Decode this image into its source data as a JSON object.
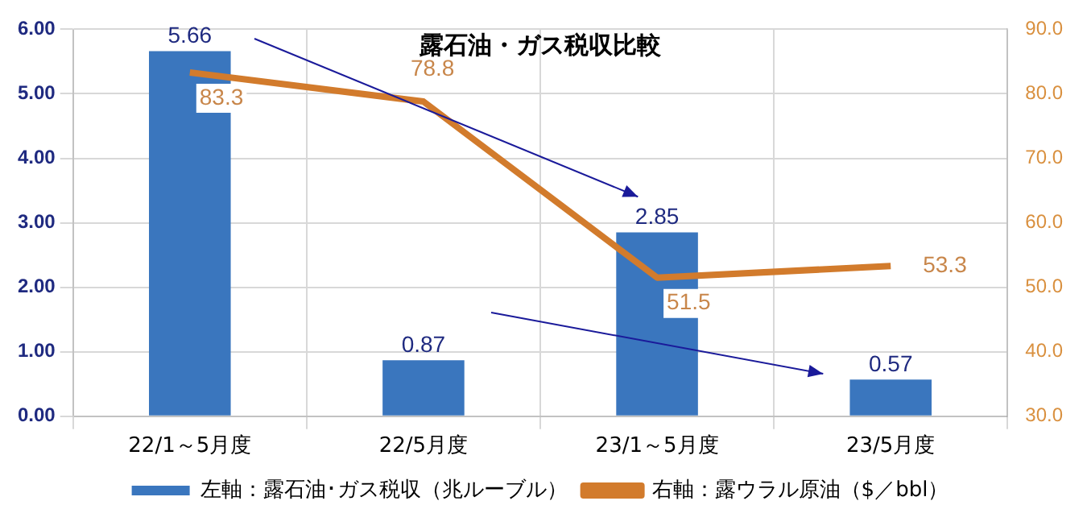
{
  "chart_data": {
    "type": "bar",
    "title": "露石油・ガス税収比較",
    "categories": [
      "22/1～5月度",
      "22/5月度",
      "23/1～5月度",
      "23/5月度"
    ],
    "series": [
      {
        "name": "左軸：露石油･ガス税収（兆ルーブル）",
        "color": "#3a76be",
        "values": [
          5.66,
          0.87,
          2.85,
          0.57
        ]
      },
      {
        "name": "右軸：露ウラル原油（$／bbl）",
        "type": "line",
        "axis": "y2",
        "color": "#d27b2c",
        "values": [
          83.3,
          78.8,
          51.5,
          53.3
        ]
      }
    ],
    "ylim": [
      0,
      6
    ],
    "yticks": [
      {
        "value": 0,
        "label": "0.00"
      },
      {
        "value": 1,
        "label": "1.00"
      },
      {
        "value": 2,
        "label": "2.00"
      },
      {
        "value": 3,
        "label": "3.00"
      },
      {
        "value": 4,
        "label": "4.00"
      },
      {
        "value": 5,
        "label": "5.00"
      },
      {
        "value": 6,
        "label": "6.00"
      }
    ],
    "y2lim": [
      30,
      90
    ],
    "y2ticks": [
      {
        "value": 30,
        "label": "30.0"
      },
      {
        "value": 40,
        "label": "40.0"
      },
      {
        "value": 50,
        "label": "50.0"
      },
      {
        "value": 60,
        "label": "60.0"
      },
      {
        "value": 70,
        "label": "70.0"
      },
      {
        "value": 80,
        "label": "80.0"
      },
      {
        "value": 90,
        "label": "90.0"
      }
    ],
    "grid": true,
    "legend": "bottom",
    "marker": "none",
    "data_labels": true
  }
}
